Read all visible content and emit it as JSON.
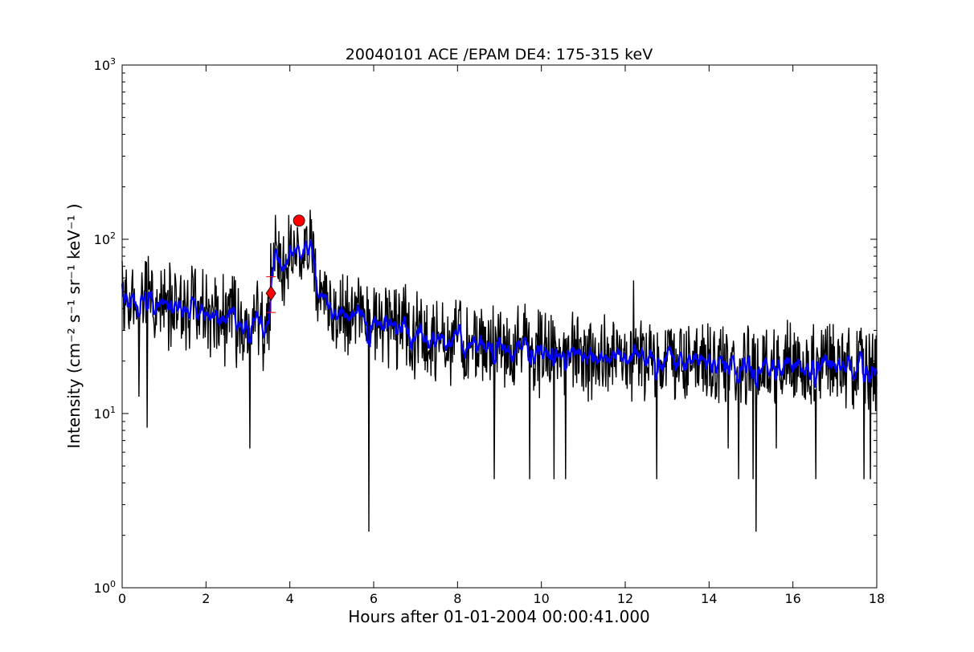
{
  "chart_data": {
    "type": "line",
    "title": "20040101 ACE /EPAM DE4: 175-315 keV",
    "xlabel": "Hours after 01-01-2004 00:00:41.000",
    "ylabel": "Intensity (cm⁻² s⁻¹ sr⁻¹ keV⁻¹ )",
    "xlim": [
      0,
      18
    ],
    "ylim": [
      1,
      1000
    ],
    "yscale": "log",
    "grid": false,
    "x_ticks": [
      "0",
      "2",
      "4",
      "6",
      "8",
      "10",
      "12",
      "14",
      "16",
      "18"
    ],
    "y_ticks": [
      {
        "base": "10",
        "exp": "0",
        "value": 1
      },
      {
        "base": "10",
        "exp": "1",
        "value": 10
      },
      {
        "base": "10",
        "exp": "2",
        "value": 100
      },
      {
        "base": "10",
        "exp": "3",
        "value": 1000
      }
    ],
    "series": [
      {
        "kind": "raw",
        "color": "#000000",
        "profile_x": [
          0,
          0.5,
          1.0,
          2.0,
          3.0,
          3.3,
          3.5,
          3.65,
          3.8,
          4.0,
          4.3,
          4.5,
          4.7,
          5.0,
          5.5,
          6.0,
          7.0,
          8.0,
          10.0,
          12.0,
          14.0,
          16.0,
          18.0
        ],
        "profile_y": [
          48,
          45,
          42,
          36,
          33,
          32,
          30,
          80,
          70,
          85,
          90,
          88,
          45,
          40,
          36,
          32,
          28,
          26,
          22,
          21,
          20,
          19,
          18
        ],
        "dips": [
          [
            0.4,
            12.5
          ],
          [
            0.6,
            8.3
          ],
          [
            3.05,
            6.3
          ],
          [
            5.88,
            2.1
          ],
          [
            8.87,
            4.2
          ],
          [
            9.72,
            4.2
          ],
          [
            10.3,
            4.2
          ],
          [
            10.58,
            4.2
          ],
          [
            12.75,
            4.2
          ],
          [
            14.45,
            6.3
          ],
          [
            14.7,
            4.2
          ],
          [
            15.05,
            4.2
          ],
          [
            15.12,
            2.1
          ],
          [
            15.6,
            6.3
          ],
          [
            16.55,
            4.2
          ],
          [
            17.7,
            4.2
          ],
          [
            17.85,
            4.2
          ]
        ],
        "spikes": [
          [
            3.55,
            95
          ],
          [
            4.35,
            115
          ],
          [
            4.5,
            100
          ],
          [
            12.2,
            58
          ]
        ]
      },
      {
        "kind": "smoothed",
        "color": "#0000ff",
        "profile_x": [
          0,
          0.5,
          1.0,
          2.0,
          3.0,
          3.3,
          3.5,
          3.65,
          3.8,
          4.0,
          4.3,
          4.5,
          4.7,
          5.0,
          5.5,
          6.0,
          7.0,
          8.0,
          10.0,
          12.0,
          14.0,
          16.0,
          18.0
        ],
        "profile_y": [
          48,
          45,
          42,
          36,
          33,
          32,
          30,
          80,
          70,
          85,
          90,
          88,
          45,
          40,
          36,
          32,
          28,
          26,
          22,
          21,
          20,
          19,
          18
        ]
      }
    ],
    "markers": [
      {
        "shape": "diamond",
        "x": 3.55,
        "y": 49,
        "color": "#ff0000",
        "error_bar": [
          38,
          61
        ]
      },
      {
        "shape": "circle",
        "x": 4.22,
        "y": 128,
        "color": "#ff0000"
      }
    ]
  }
}
